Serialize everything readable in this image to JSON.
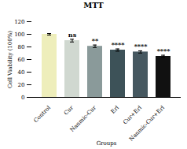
{
  "chart_data": {
    "type": "bar",
    "title": "MTT",
    "xlabel": "Groups",
    "ylabel": "Cell Viability (100%)",
    "categories": [
      "Control",
      "Cur",
      "Nanmic-Cur",
      "Erl",
      "Cur+Erl",
      "Nanmic-Cur+Erl"
    ],
    "values": [
      100,
      90,
      81,
      75,
      72,
      65
    ],
    "errors": [
      1.2,
      2.2,
      2.0,
      1.8,
      1.8,
      1.8
    ],
    "colors": [
      "#eeeebb",
      "#d0d8d0",
      "#8a9a9a",
      "#3d5258",
      "#465860",
      "#111111"
    ],
    "annotations": [
      {
        "category": "Cur",
        "text": "ns"
      },
      {
        "category": "Nanmic-Cur",
        "text": "**"
      },
      {
        "category": "Erl",
        "text": "****"
      },
      {
        "category": "Cur+Erl",
        "text": "****"
      },
      {
        "category": "Nanmic-Cur+Erl",
        "text": "****"
      }
    ],
    "ylim": [
      0,
      120
    ],
    "yticks": [
      0,
      20,
      40,
      60,
      80,
      100,
      120
    ],
    "grid": false
  }
}
